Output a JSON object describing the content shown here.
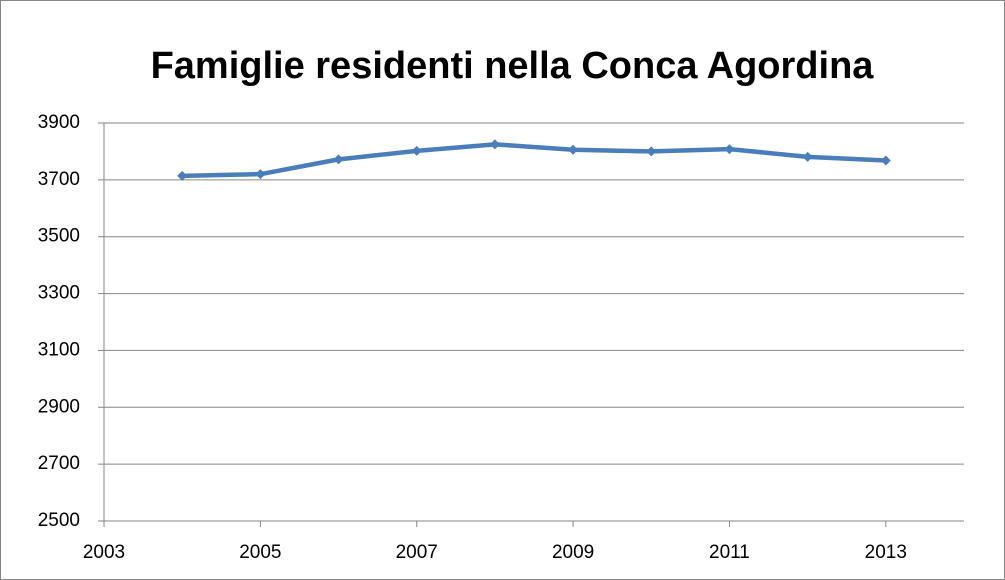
{
  "chart_data": {
    "type": "line",
    "title": "Famiglie residenti nella Conca Agordina",
    "x": [
      2004,
      2005,
      2006,
      2007,
      2008,
      2009,
      2010,
      2011,
      2012,
      2013
    ],
    "series": [
      {
        "color": "#4a7ebb",
        "values": [
          3714,
          3720,
          3772,
          3802,
          3825,
          3806,
          3800,
          3808,
          3781,
          3768
        ]
      }
    ],
    "xlim": [
      2003,
      2014
    ],
    "xticks": [
      2003,
      2005,
      2007,
      2009,
      2011,
      2013
    ],
    "ylim": [
      2500,
      3900
    ],
    "yticks": [
      2500,
      2700,
      2900,
      3100,
      3300,
      3500,
      3700,
      3900
    ],
    "grid": true
  }
}
